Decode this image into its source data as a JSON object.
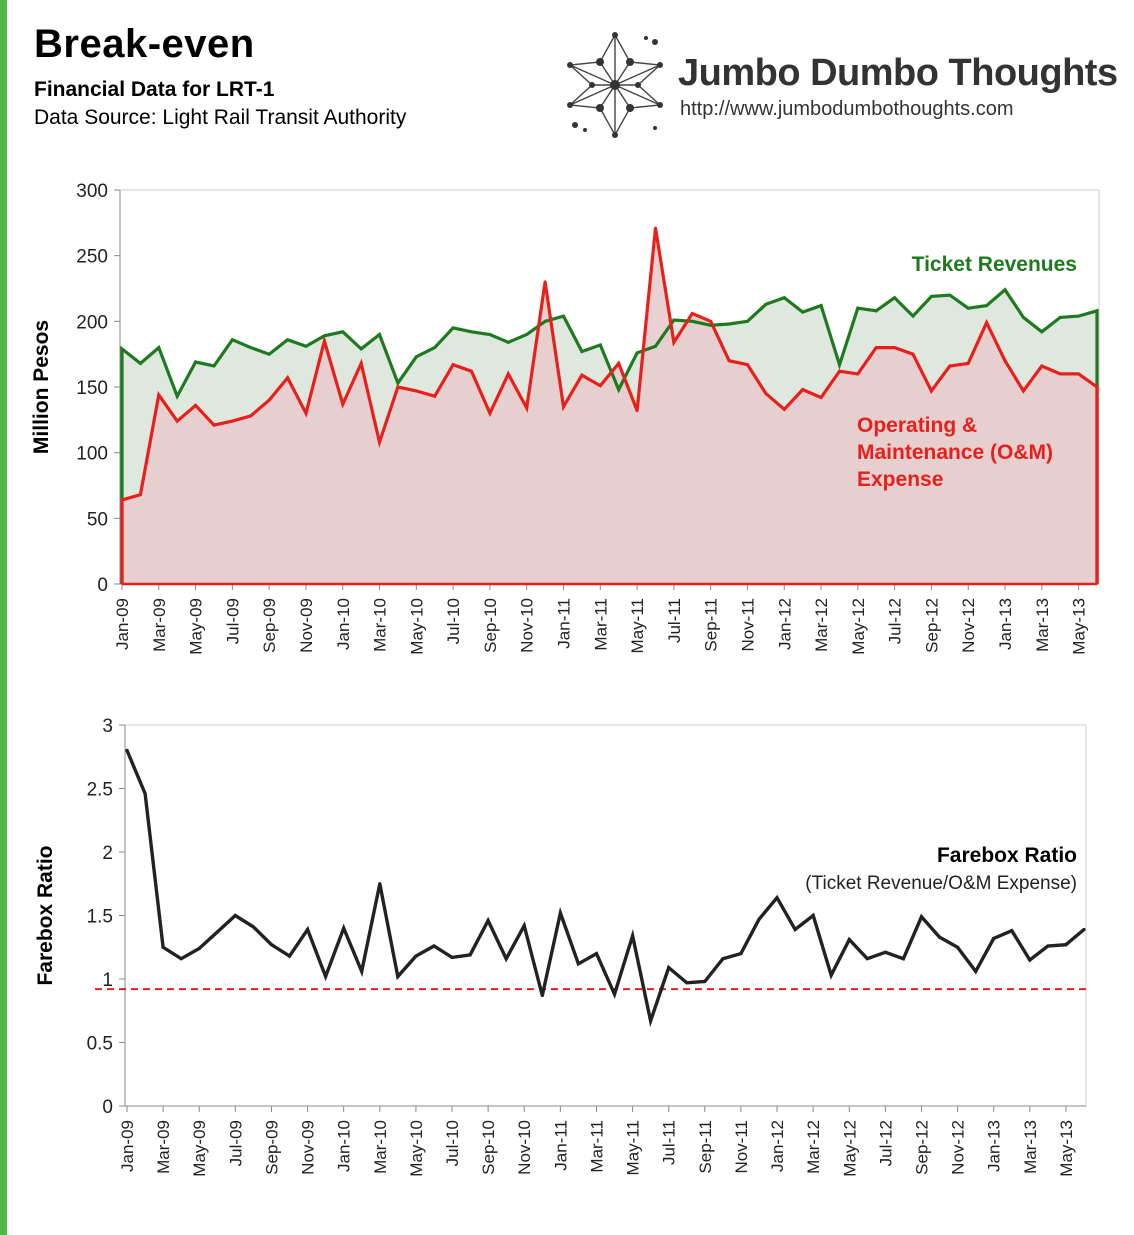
{
  "header": {
    "title": "Break-even",
    "subtitle": "Financial Data for LRT-1",
    "source": "Data Source: Light Rail Transit Authority"
  },
  "brand": {
    "name": "Jumbo Dumbo Thoughts",
    "url": "http://www.jumbodumbothoughts.com",
    "logo_icon": "network-star-logo-icon"
  },
  "colors": {
    "accent_border": "#4fb84b",
    "revenue": "#1f7a1f",
    "expense": "#e8201c",
    "ratio": "#222222"
  },
  "chart_data": [
    {
      "type": "area",
      "ylabel": "Million Pesos",
      "xlabel": "",
      "ylim": [
        0,
        300
      ],
      "yticks": [
        0,
        50,
        100,
        150,
        200,
        250,
        300
      ],
      "grid": false,
      "categories": [
        "Jan-09",
        "Feb-09",
        "Mar-09",
        "Apr-09",
        "May-09",
        "Jun-09",
        "Jul-09",
        "Aug-09",
        "Sep-09",
        "Oct-09",
        "Nov-09",
        "Dec-09",
        "Jan-10",
        "Feb-10",
        "Mar-10",
        "Apr-10",
        "May-10",
        "Jun-10",
        "Jul-10",
        "Aug-10",
        "Sep-10",
        "Oct-10",
        "Nov-10",
        "Dec-10",
        "Jan-11",
        "Feb-11",
        "Mar-11",
        "Apr-11",
        "May-11",
        "Jun-11",
        "Jul-11",
        "Aug-11",
        "Sep-11",
        "Oct-11",
        "Nov-11",
        "Dec-11",
        "Jan-12",
        "Feb-12",
        "Mar-12",
        "Apr-12",
        "May-12",
        "Jun-12",
        "Jul-12",
        "Aug-12",
        "Sep-12",
        "Oct-12",
        "Nov-12",
        "Dec-12",
        "Jan-13",
        "Feb-13",
        "Mar-13",
        "Apr-13",
        "May-13",
        "Jun-13"
      ],
      "tick_labels": [
        "Jan-09",
        "Mar-09",
        "May-09",
        "Jul-09",
        "Sep-09",
        "Nov-09",
        "Jan-10",
        "Mar-10",
        "May-10",
        "Jul-10",
        "Sep-10",
        "Nov-10",
        "Jan-11",
        "Mar-11",
        "May-11",
        "Jul-11",
        "Sep-11",
        "Nov-11",
        "Jan-12",
        "Mar-12",
        "May-12",
        "Jul-12",
        "Sep-12",
        "Nov-12",
        "Jan-13",
        "Mar-13",
        "May-13"
      ],
      "series": [
        {
          "name": "Ticket Revenues",
          "values": [
            179,
            168,
            180,
            143,
            169,
            166,
            186,
            180,
            175,
            186,
            181,
            189,
            192,
            179,
            190,
            153,
            173,
            180,
            195,
            192,
            190,
            184,
            190,
            200,
            204,
            177,
            182,
            148,
            176,
            181,
            201,
            200,
            197,
            198,
            200,
            213,
            218,
            207,
            212,
            167,
            210,
            208,
            218,
            204,
            219,
            220,
            210,
            212,
            224,
            203,
            192,
            203,
            204,
            208
          ]
        },
        {
          "name": "Operating & Maintenance (O&M) Expense",
          "values": [
            64,
            68,
            144,
            124,
            136,
            121,
            124,
            128,
            140,
            157,
            130,
            185,
            137,
            168,
            108,
            150,
            147,
            143,
            167,
            162,
            130,
            160,
            134,
            230,
            135,
            159,
            151,
            168,
            132,
            271,
            184,
            206,
            200,
            170,
            167,
            145,
            133,
            148,
            142,
            162,
            160,
            180,
            180,
            175,
            147,
            166,
            168,
            199,
            170,
            147,
            166,
            160,
            160,
            150
          ]
        }
      ],
      "annotations": [
        {
          "text": "Ticket Revenues",
          "series": 0
        },
        {
          "text": "Operating &",
          "series": 1
        },
        {
          "text": "Maintenance (O&M)",
          "series": 1
        },
        {
          "text": "Expense",
          "series": 1
        }
      ]
    },
    {
      "type": "line",
      "ylabel": "Farebox Ratio",
      "xlabel": "",
      "ylim": [
        0,
        3
      ],
      "yticks": [
        "0",
        "0.5",
        "1",
        "1.5",
        "2",
        "2.5",
        "3"
      ],
      "grid": false,
      "categories": [
        "Jan-09",
        "Feb-09",
        "Mar-09",
        "Apr-09",
        "May-09",
        "Jun-09",
        "Jul-09",
        "Aug-09",
        "Sep-09",
        "Oct-09",
        "Nov-09",
        "Dec-09",
        "Jan-10",
        "Feb-10",
        "Mar-10",
        "Apr-10",
        "May-10",
        "Jun-10",
        "Jul-10",
        "Aug-10",
        "Sep-10",
        "Oct-10",
        "Nov-10",
        "Dec-10",
        "Jan-11",
        "Feb-11",
        "Mar-11",
        "Apr-11",
        "May-11",
        "Jun-11",
        "Jul-11",
        "Aug-11",
        "Sep-11",
        "Oct-11",
        "Nov-11",
        "Dec-11",
        "Jan-12",
        "Feb-12",
        "Mar-12",
        "Apr-12",
        "May-12",
        "Jun-12",
        "Jul-12",
        "Aug-12",
        "Sep-12",
        "Oct-12",
        "Nov-12",
        "Dec-12",
        "Jan-13",
        "Feb-13",
        "Mar-13",
        "Apr-13",
        "May-13",
        "Jun-13"
      ],
      "tick_labels": [
        "Jan-09",
        "Mar-09",
        "May-09",
        "Jul-09",
        "Sep-09",
        "Nov-09",
        "Jan-10",
        "Mar-10",
        "May-10",
        "Jul-10",
        "Sep-10",
        "Nov-10",
        "Jan-11",
        "Mar-11",
        "May-11",
        "Jul-11",
        "Sep-11",
        "Nov-11",
        "Jan-12",
        "Mar-12",
        "May-12",
        "Jul-12",
        "Sep-12",
        "Nov-12",
        "Jan-13",
        "Mar-13",
        "May-13"
      ],
      "series": [
        {
          "name": "Farebox Ratio",
          "values": [
            2.8,
            2.46,
            1.25,
            1.16,
            1.24,
            1.37,
            1.5,
            1.41,
            1.27,
            1.18,
            1.39,
            1.02,
            1.4,
            1.06,
            1.75,
            1.02,
            1.18,
            1.26,
            1.17,
            1.19,
            1.46,
            1.16,
            1.42,
            0.87,
            1.52,
            1.12,
            1.2,
            0.88,
            1.34,
            0.67,
            1.09,
            0.97,
            0.98,
            1.16,
            1.2,
            1.47,
            1.64,
            1.39,
            1.5,
            1.03,
            1.31,
            1.16,
            1.21,
            1.16,
            1.49,
            1.33,
            1.25,
            1.06,
            1.32,
            1.38,
            1.15,
            1.26,
            1.27,
            1.39
          ]
        }
      ],
      "reference_line": {
        "value": 0.92,
        "style": "dashed",
        "color": "#e8201c"
      },
      "annotation_title": "Farebox Ratio",
      "annotation_subtitle": "(Ticket Revenue/O&M Expense)"
    }
  ]
}
